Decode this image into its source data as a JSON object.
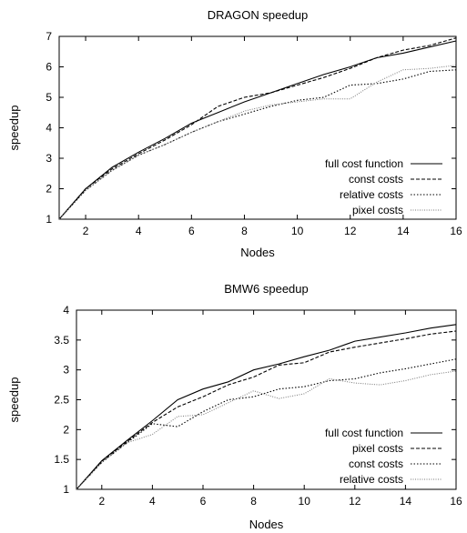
{
  "chart_data": [
    {
      "type": "line",
      "title": "DRAGON speedup",
      "xlabel": "Nodes",
      "ylabel": "speedup",
      "xlim": [
        1,
        16
      ],
      "ylim": [
        1,
        7
      ],
      "xticks": [
        2,
        4,
        6,
        8,
        10,
        12,
        14,
        16
      ],
      "yticks": [
        1,
        2,
        3,
        4,
        5,
        6,
        7
      ],
      "grid": false,
      "legend": "bottom-right",
      "x": [
        1,
        2,
        3,
        4,
        5,
        6,
        7,
        8,
        9,
        10,
        11,
        12,
        13,
        14,
        15,
        16
      ],
      "series": [
        {
          "name": "full cost function",
          "style": "solid",
          "values": [
            1.0,
            2.0,
            2.7,
            3.2,
            3.65,
            4.15,
            4.5,
            4.85,
            5.15,
            5.45,
            5.75,
            6.0,
            6.3,
            6.45,
            6.65,
            6.85
          ]
        },
        {
          "name": "const costs",
          "style": "dashed",
          "values": [
            1.0,
            2.0,
            2.65,
            3.15,
            3.6,
            4.1,
            4.7,
            5.0,
            5.15,
            5.4,
            5.65,
            5.95,
            6.3,
            6.55,
            6.7,
            6.95
          ]
        },
        {
          "name": "relative costs",
          "style": "dotted",
          "values": [
            1.0,
            1.95,
            2.6,
            3.1,
            3.45,
            3.85,
            4.2,
            4.45,
            4.7,
            4.9,
            5.0,
            5.4,
            5.45,
            5.6,
            5.85,
            5.9
          ]
        },
        {
          "name": "pixel costs",
          "style": "dotted-light",
          "values": [
            1.0,
            1.95,
            2.6,
            3.1,
            3.45,
            3.85,
            4.2,
            4.55,
            4.75,
            4.85,
            4.95,
            4.95,
            5.5,
            5.9,
            5.95,
            6.05
          ]
        }
      ]
    },
    {
      "type": "line",
      "title": "BMW6 speedup",
      "xlabel": "Nodes",
      "ylabel": "speedup",
      "xlim": [
        1,
        16
      ],
      "ylim": [
        1,
        4
      ],
      "xticks": [
        2,
        4,
        6,
        8,
        10,
        12,
        14,
        16
      ],
      "yticks": [
        1,
        1.5,
        2,
        2.5,
        3,
        3.5,
        4
      ],
      "grid": false,
      "legend": "bottom-right",
      "x": [
        1,
        2,
        3,
        4,
        5,
        6,
        7,
        8,
        9,
        10,
        11,
        12,
        13,
        14,
        15,
        16
      ],
      "series": [
        {
          "name": "full cost function",
          "style": "solid",
          "values": [
            1.0,
            1.48,
            1.82,
            2.15,
            2.5,
            2.68,
            2.8,
            3.0,
            3.1,
            3.22,
            3.33,
            3.48,
            3.55,
            3.62,
            3.7,
            3.76
          ]
        },
        {
          "name": "pixel costs",
          "style": "dashed",
          "values": [
            1.0,
            1.47,
            1.8,
            2.12,
            2.38,
            2.55,
            2.75,
            2.88,
            3.08,
            3.12,
            3.3,
            3.38,
            3.45,
            3.52,
            3.6,
            3.65
          ]
        },
        {
          "name": "const costs",
          "style": "dotted",
          "values": [
            1.0,
            1.45,
            1.78,
            2.1,
            2.05,
            2.3,
            2.5,
            2.55,
            2.68,
            2.72,
            2.82,
            2.85,
            2.95,
            3.02,
            3.1,
            3.18
          ]
        },
        {
          "name": "relative costs",
          "style": "dotted-light",
          "values": [
            1.0,
            1.45,
            1.78,
            1.92,
            2.22,
            2.25,
            2.45,
            2.65,
            2.52,
            2.6,
            2.85,
            2.78,
            2.75,
            2.82,
            2.92,
            2.98
          ]
        }
      ]
    }
  ]
}
